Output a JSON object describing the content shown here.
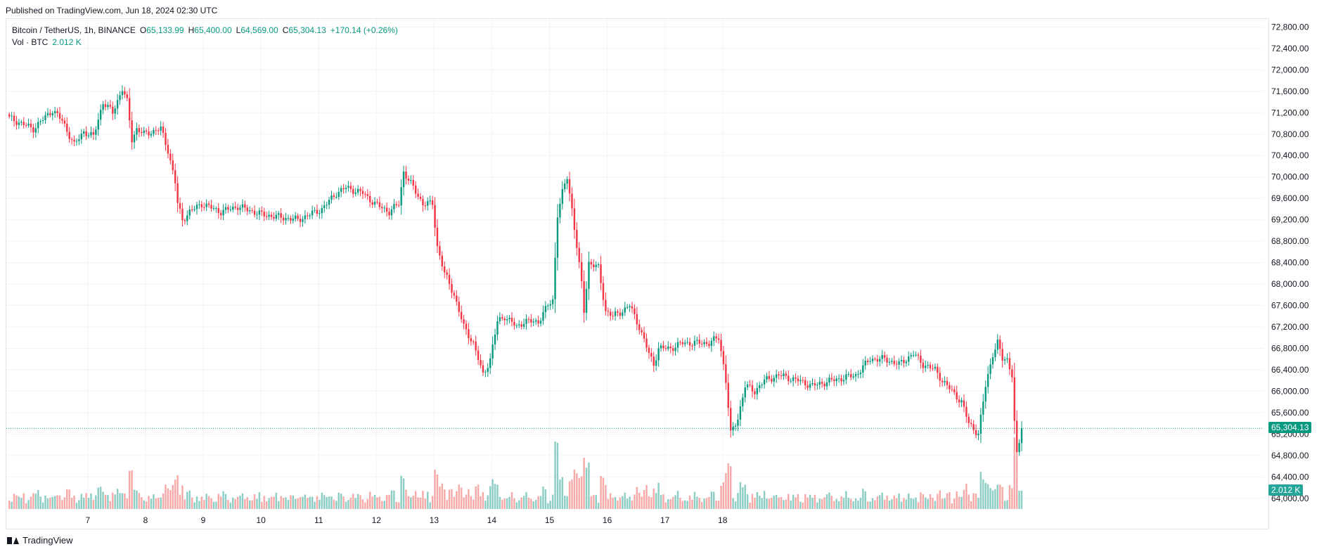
{
  "header": {
    "published": "Published on TradingView.com, Jun 18, 2024 02:30 UTC"
  },
  "legend": {
    "symbol": "Bitcoin / TetherUS, 1h, BINANCE",
    "open_label": "O",
    "open": "65,133.99",
    "high_label": "H",
    "high": "65,400.00",
    "low_label": "L",
    "low": "64,569.00",
    "close_label": "C",
    "close": "65,304.13",
    "change": "+170.14 (+0.26%)",
    "vol_label": "Vol · BTC",
    "vol_value": "2.012 K"
  },
  "tags": {
    "last_price": "65,304.13",
    "last_volume": "2.012 K"
  },
  "brand": {
    "name": "TradingView"
  },
  "colors": {
    "up": "#089981",
    "down": "#f23645",
    "vol_up": "#8ccdc4",
    "vol_down": "#f7a9a7",
    "grid": "#f0f3fa",
    "axis_text": "#131722"
  },
  "chart_data": {
    "type": "candlestick",
    "x_tick_labels": [
      "7",
      "8",
      "9",
      "10",
      "11",
      "12",
      "13",
      "14",
      "15",
      "16",
      "17",
      "18"
    ],
    "y_tick_labels": [
      "64,000.00",
      "64,400.00",
      "64,800.00",
      "65,200.00",
      "65,600.00",
      "66,000.00",
      "66,400.00",
      "66,800.00",
      "67,200.00",
      "67,600.00",
      "68,000.00",
      "68,400.00",
      "68,800.00",
      "69,200.00",
      "69,600.00",
      "70,000.00",
      "70,400.00",
      "70,800.00",
      "71,200.00",
      "71,600.00",
      "72,000.00",
      "72,400.00",
      "72,800.00"
    ],
    "ylim": [
      63800,
      72950
    ],
    "price_path": [
      [
        0,
        71100
      ],
      [
        10,
        70900
      ],
      [
        18,
        71250
      ],
      [
        22,
        71050
      ],
      [
        27,
        70600
      ],
      [
        31,
        70850
      ],
      [
        35,
        70750
      ],
      [
        39,
        71400
      ],
      [
        43,
        71200
      ],
      [
        47,
        71650
      ],
      [
        49,
        71400
      ],
      [
        51,
        70700
      ],
      [
        53,
        70900
      ],
      [
        56,
        70800
      ],
      [
        63,
        70900
      ],
      [
        66,
        70500
      ],
      [
        69,
        69900
      ],
      [
        70,
        69500
      ],
      [
        72,
        69200
      ],
      [
        75,
        69350
      ],
      [
        80,
        69500
      ],
      [
        88,
        69350
      ],
      [
        95,
        69450
      ],
      [
        105,
        69300
      ],
      [
        120,
        69200
      ],
      [
        130,
        69400
      ],
      [
        136,
        69700
      ],
      [
        140,
        69800
      ],
      [
        147,
        69700
      ],
      [
        152,
        69500
      ],
      [
        158,
        69350
      ],
      [
        162,
        69500
      ],
      [
        164,
        70100
      ],
      [
        168,
        69800
      ],
      [
        172,
        69500
      ],
      [
        176,
        69500
      ],
      [
        178,
        68700
      ],
      [
        181,
        68200
      ],
      [
        185,
        67800
      ],
      [
        189,
        67200
      ],
      [
        193,
        66900
      ],
      [
        197,
        66300
      ],
      [
        200,
        66600
      ],
      [
        203,
        67300
      ],
      [
        206,
        67400
      ],
      [
        211,
        67200
      ],
      [
        214,
        67300
      ],
      [
        220,
        67300
      ],
      [
        224,
        67600
      ],
      [
        226,
        67700
      ],
      [
        228,
        69300
      ],
      [
        230,
        69700
      ],
      [
        232,
        70000
      ],
      [
        234,
        69400
      ],
      [
        236,
        68700
      ],
      [
        238,
        68000
      ],
      [
        239,
        67500
      ],
      [
        241,
        68400
      ],
      [
        245,
        68300
      ],
      [
        248,
        67500
      ],
      [
        251,
        67400
      ],
      [
        255,
        67500
      ],
      [
        258,
        67600
      ],
      [
        262,
        67200
      ],
      [
        266,
        66700
      ],
      [
        268,
        66500
      ],
      [
        270,
        66800
      ],
      [
        275,
        66800
      ],
      [
        280,
        66900
      ],
      [
        285,
        66900
      ],
      [
        291,
        66900
      ],
      [
        295,
        67000
      ],
      [
        297,
        66500
      ],
      [
        298,
        66200
      ],
      [
        299,
        65700
      ],
      [
        300,
        65200
      ],
      [
        303,
        65500
      ],
      [
        306,
        66100
      ],
      [
        310,
        66000
      ],
      [
        314,
        66200
      ],
      [
        320,
        66300
      ],
      [
        328,
        66200
      ],
      [
        334,
        66100
      ],
      [
        342,
        66200
      ],
      [
        352,
        66300
      ],
      [
        358,
        66600
      ],
      [
        364,
        66600
      ],
      [
        370,
        66500
      ],
      [
        376,
        66700
      ],
      [
        380,
        66500
      ],
      [
        385,
        66400
      ],
      [
        388,
        66200
      ],
      [
        392,
        66000
      ],
      [
        396,
        65800
      ],
      [
        399,
        65400
      ],
      [
        403,
        65200
      ],
      [
        406,
        66100
      ],
      [
        409,
        66700
      ],
      [
        411,
        66900
      ],
      [
        413,
        66600
      ],
      [
        415,
        66600
      ],
      [
        417,
        66300
      ],
      [
        418,
        65400
      ],
      [
        419,
        64800
      ],
      [
        421,
        65300
      ]
    ],
    "volume_scale_max_K": 10,
    "last_volume_K": 2.012,
    "last_price": 65304.13,
    "grid": true
  }
}
